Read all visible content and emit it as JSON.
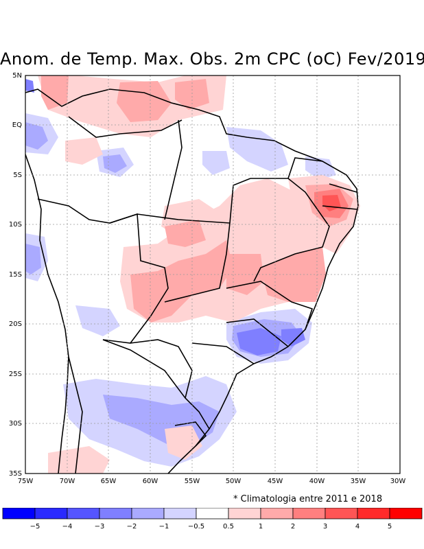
{
  "title": "Anom. de Temp. Max. Obs. 2m CPC (oC) Fev/2019",
  "note": "* Climatologia entre 2011 e 2018",
  "lat_labels": [
    "5N",
    "EQ",
    "5S",
    "10S",
    "15S",
    "20S",
    "25S",
    "30S",
    "35S"
  ],
  "lon_labels": [
    "75W",
    "70W",
    "65W",
    "60W",
    "55W",
    "50W",
    "45W",
    "40W",
    "35W",
    "30W"
  ],
  "legend": {
    "colors": [
      "#0000ff",
      "#2a2aff",
      "#5555ff",
      "#7f7fff",
      "#aaaaff",
      "#d4d4ff",
      "#ffffff",
      "#ffd4d4",
      "#ffaaaa",
      "#ff7f7f",
      "#ff5555",
      "#ff2a2a",
      "#ff0000"
    ],
    "labels": [
      "−5",
      "−4",
      "−3",
      "−2",
      "−1",
      "−0.5",
      "0.5",
      "1",
      "2",
      "3",
      "4",
      "5"
    ]
  }
}
